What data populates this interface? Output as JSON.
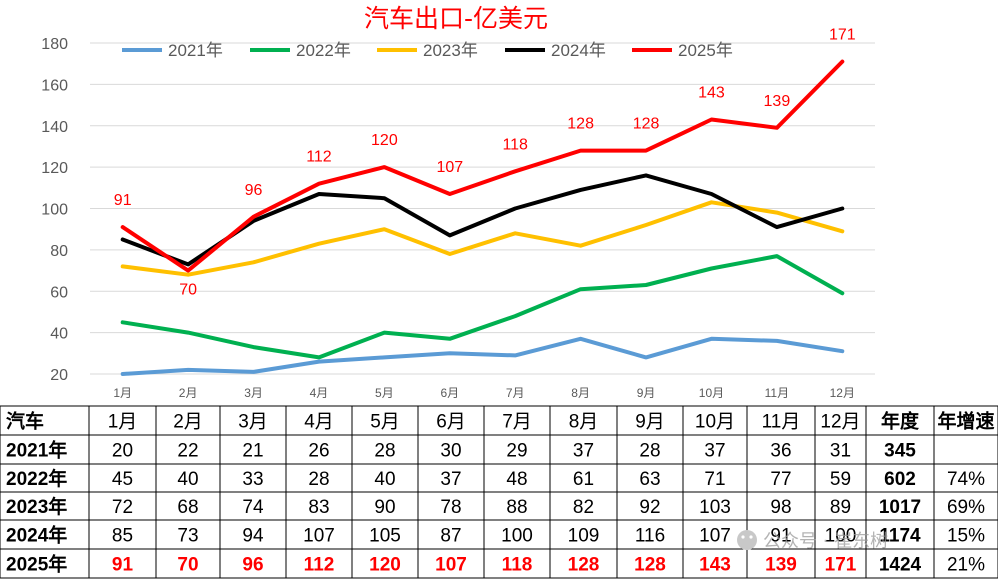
{
  "chart_data": {
    "type": "line",
    "title": "汽车出口-亿美元",
    "categories": [
      "1月",
      "2月",
      "3月",
      "4月",
      "5月",
      "6月",
      "7月",
      "8月",
      "9月",
      "10月",
      "11月",
      "12月"
    ],
    "ylim": [
      20,
      180
    ],
    "yticks": [
      20,
      40,
      60,
      80,
      100,
      120,
      140,
      160,
      180
    ],
    "grid": true,
    "legend_position": "top",
    "series": [
      {
        "name": "2021年",
        "color": "#5b9bd5",
        "values": [
          20,
          22,
          21,
          26,
          28,
          30,
          29,
          37,
          28,
          37,
          36,
          31
        ]
      },
      {
        "name": "2022年",
        "color": "#00b050",
        "values": [
          45,
          40,
          33,
          28,
          40,
          37,
          48,
          61,
          63,
          71,
          77,
          59
        ]
      },
      {
        "name": "2023年",
        "color": "#ffc000",
        "values": [
          72,
          68,
          74,
          83,
          90,
          78,
          88,
          82,
          92,
          103,
          98,
          89
        ]
      },
      {
        "name": "2024年",
        "color": "#000000",
        "values": [
          85,
          73,
          94,
          107,
          105,
          87,
          100,
          109,
          116,
          107,
          91,
          100
        ]
      },
      {
        "name": "2025年",
        "color": "#ff0000",
        "values": [
          91,
          70,
          96,
          112,
          120,
          107,
          118,
          128,
          128,
          143,
          139,
          171
        ],
        "data_labels": true
      }
    ]
  },
  "table": {
    "corner": "汽车",
    "months": [
      "1月",
      "2月",
      "3月",
      "4月",
      "5月",
      "6月",
      "7月",
      "8月",
      "9月",
      "10月",
      "11月",
      "12月"
    ],
    "annual_header": "年度",
    "growth_header": "年增速",
    "rows": [
      {
        "year": "2021年",
        "values": [
          "20",
          "22",
          "21",
          "26",
          "28",
          "30",
          "29",
          "37",
          "28",
          "37",
          "36",
          "31"
        ],
        "total": "345",
        "growth": ""
      },
      {
        "year": "2022年",
        "values": [
          "45",
          "40",
          "33",
          "28",
          "40",
          "37",
          "48",
          "61",
          "63",
          "71",
          "77",
          "59"
        ],
        "total": "602",
        "growth": "74%"
      },
      {
        "year": "2023年",
        "values": [
          "72",
          "68",
          "74",
          "83",
          "90",
          "78",
          "88",
          "82",
          "92",
          "103",
          "98",
          "89"
        ],
        "total": "1017",
        "growth": "69%"
      },
      {
        "year": "2024年",
        "values": [
          "85",
          "73",
          "94",
          "107",
          "105",
          "87",
          "100",
          "109",
          "116",
          "107",
          "91",
          "100"
        ],
        "total": "1174",
        "growth": "15%"
      },
      {
        "year": "2025年",
        "values": [
          "91",
          "70",
          "96",
          "112",
          "120",
          "107",
          "118",
          "128",
          "128",
          "143",
          "139",
          "171"
        ],
        "total": "1424",
        "growth": "21%",
        "highlight": true
      }
    ]
  },
  "watermark": "公众号 · 崔东树"
}
